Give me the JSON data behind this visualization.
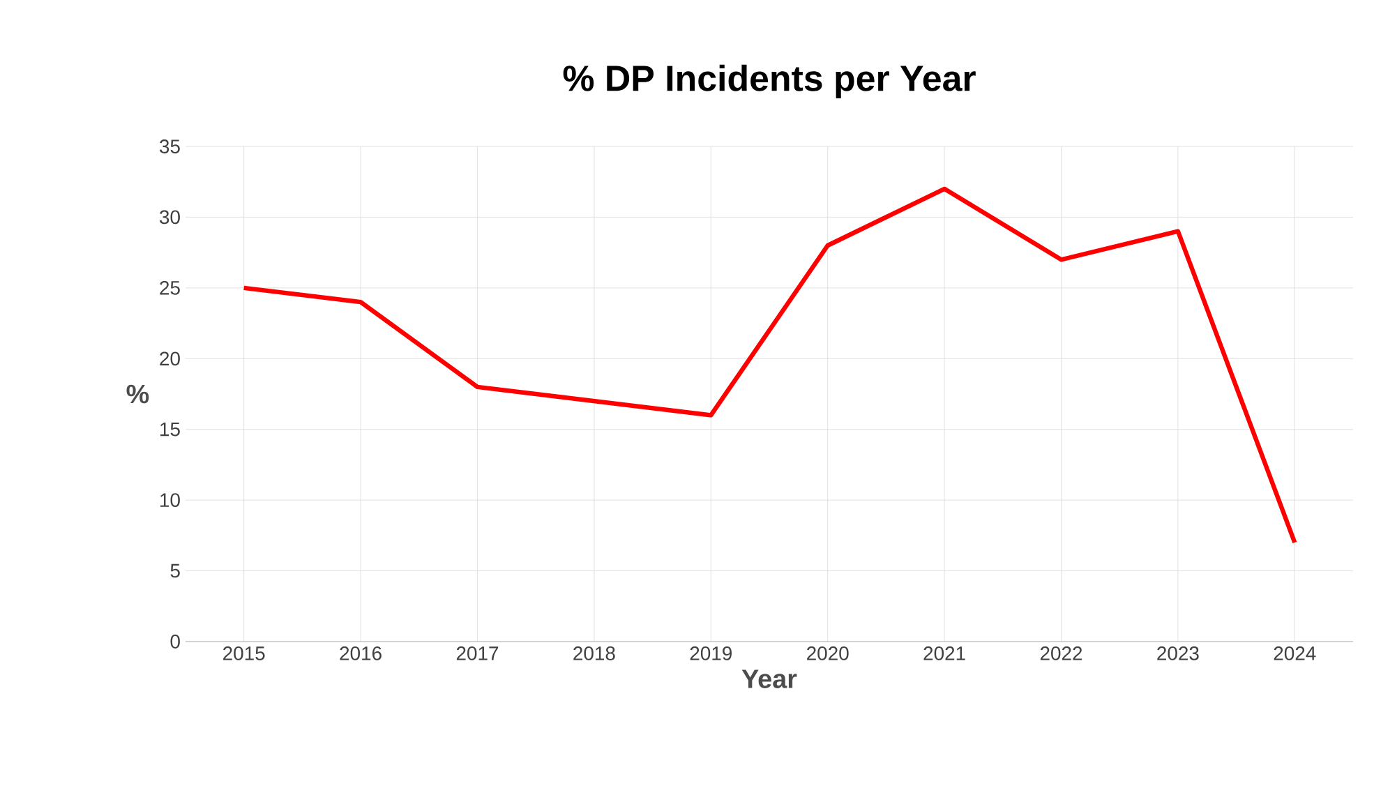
{
  "chart_data": {
    "type": "line",
    "title": "% DP Incidents per Year",
    "xlabel": "Year",
    "ylabel": "%",
    "categories": [
      "2015",
      "2016",
      "2017",
      "2018",
      "2019",
      "2020",
      "2021",
      "2022",
      "2023",
      "2024"
    ],
    "series": [
      {
        "color": "#ff0000",
        "values": [
          25,
          24,
          18,
          17,
          16,
          28,
          32,
          27,
          29,
          7
        ]
      }
    ],
    "ylim": [
      0,
      35
    ],
    "yticks": [
      0,
      5,
      10,
      15,
      20,
      25,
      30,
      35
    ],
    "grid": true,
    "legend": false,
    "marker": "none",
    "line_style": "solid"
  }
}
